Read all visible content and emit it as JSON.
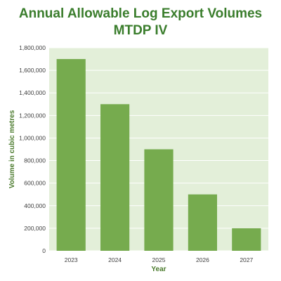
{
  "chart_data": {
    "type": "bar",
    "title": "Annual Allowable Log Export Volumes",
    "subtitle": "MTDP IV",
    "xlabel": "Year",
    "ylabel": "Volume in cubic metres",
    "categories": [
      "2023",
      "2024",
      "2025",
      "2026",
      "2027"
    ],
    "values": [
      1700000,
      1300000,
      900000,
      500000,
      200000
    ],
    "ylim": [
      0,
      1800000
    ],
    "yticks": [
      "0",
      "200,000",
      "400,000",
      "600,000",
      "800,000",
      "1,000,000",
      "1,200,000",
      "1,400,000",
      "1,600,000",
      "1,800,000"
    ],
    "ytick_values": [
      0,
      200000,
      400000,
      600000,
      800000,
      1000000,
      1200000,
      1400000,
      1600000,
      1800000
    ],
    "grid": true,
    "legend": "none",
    "colors": {
      "bar": "#76ab4e",
      "plot_background": "#e3efd9",
      "gridline": "#ffffff",
      "title": "#3a7d2c",
      "axis_title": "#4a7a2c"
    }
  }
}
